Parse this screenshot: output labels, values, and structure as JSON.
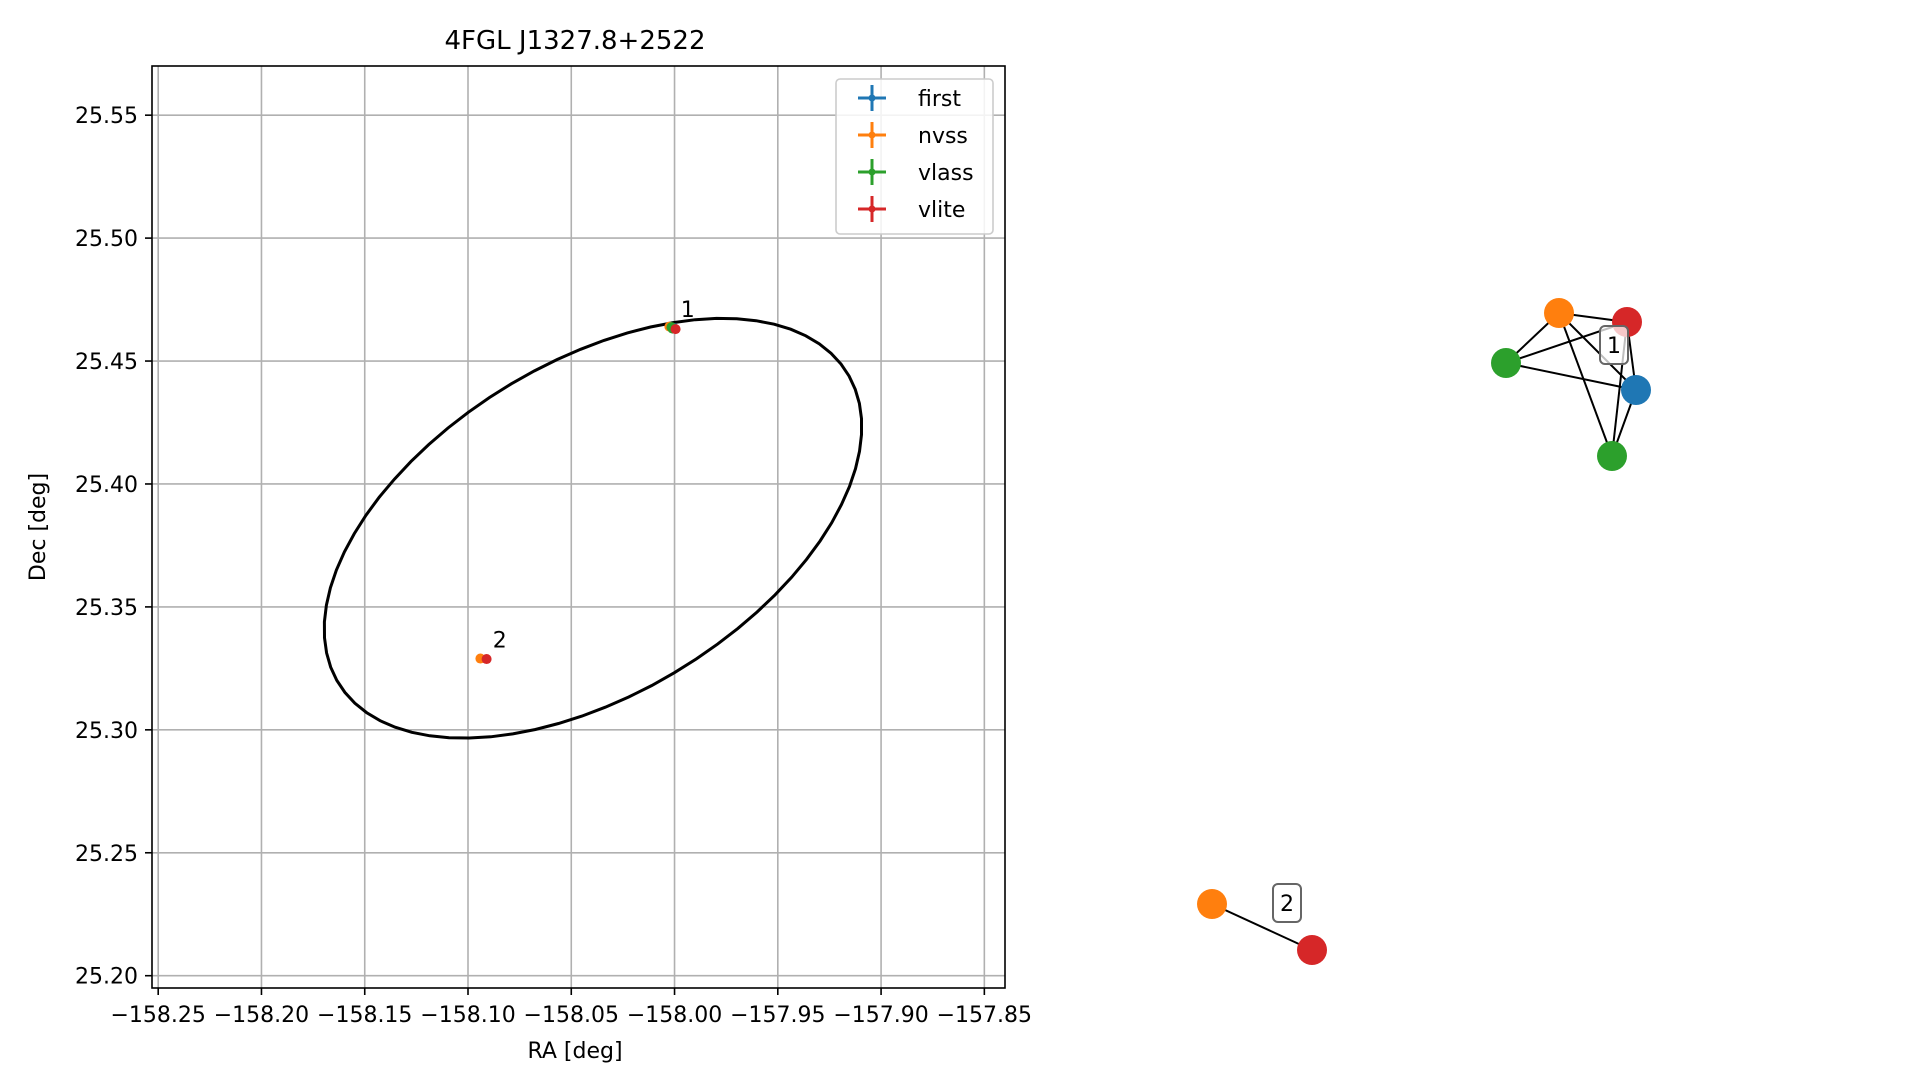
{
  "chart_data": [
    {
      "type": "scatter",
      "title": "4FGL J1327.8+2522",
      "xlabel": "RA [deg]",
      "ylabel": "Dec [deg]",
      "xlim": [
        -158.253,
        -157.84
      ],
      "ylim": [
        25.195,
        25.57
      ],
      "xticks": [
        -158.25,
        -158.2,
        -158.15,
        -158.1,
        -158.05,
        -158.0,
        -157.95,
        -157.9,
        -157.85
      ],
      "xtick_labels": [
        "−158.25",
        "−158.20",
        "−158.15",
        "−158.10",
        "−158.05",
        "−158.00",
        "−157.95",
        "−157.90",
        "−157.85"
      ],
      "yticks": [
        25.2,
        25.25,
        25.3,
        25.35,
        25.4,
        25.45,
        25.5,
        25.55
      ],
      "ytick_labels": [
        "25.20",
        "25.25",
        "25.30",
        "25.35",
        "25.40",
        "25.45",
        "25.50",
        "25.55"
      ],
      "grid": true,
      "legend_position": "top-right",
      "series": [
        {
          "name": "first",
          "color": "#1f77b4",
          "points": [
            {
              "x": -158.0005,
              "y": 25.4635
            }
          ]
        },
        {
          "name": "nvss",
          "color": "#ff7f0e",
          "points": [
            {
              "x": -158.0025,
              "y": 25.464
            },
            {
              "x": -158.094,
              "y": 25.329
            }
          ]
        },
        {
          "name": "vlass",
          "color": "#2ca02c",
          "points": [
            {
              "x": -158.0015,
              "y": 25.4638
            },
            {
              "x": -158.001,
              "y": 25.4632
            }
          ]
        },
        {
          "name": "vlite",
          "color": "#d62728",
          "points": [
            {
              "x": -157.9995,
              "y": 25.463
            },
            {
              "x": -158.091,
              "y": 25.3288
            }
          ]
        }
      ],
      "ellipse": {
        "center": [
          -158.0395,
          25.382
        ],
        "semi_axis_a": 0.139,
        "semi_axis_b": 0.07,
        "angle_deg": 24,
        "color": "#000000"
      },
      "annotations": [
        {
          "text": "1",
          "x": -157.997,
          "y": 25.468
        },
        {
          "text": "2",
          "x": -158.088,
          "y": 25.3335
        }
      ]
    },
    {
      "type": "network",
      "nodes": [
        {
          "id": "n-orange-1",
          "color": "#ff7f0e"
        },
        {
          "id": "n-red-1",
          "color": "#d62728"
        },
        {
          "id": "n-green-a",
          "color": "#2ca02c"
        },
        {
          "id": "n-blue-1",
          "color": "#1f77b4"
        },
        {
          "id": "n-green-b",
          "color": "#2ca02c"
        },
        {
          "id": "n-orange-2",
          "color": "#ff7f0e"
        },
        {
          "id": "n-red-2",
          "color": "#d62728"
        }
      ],
      "edges": [
        [
          "n-orange-1",
          "n-red-1"
        ],
        [
          "n-orange-1",
          "n-green-a"
        ],
        [
          "n-orange-1",
          "n-blue-1"
        ],
        [
          "n-orange-1",
          "n-green-b"
        ],
        [
          "n-red-1",
          "n-blue-1"
        ],
        [
          "n-red-1",
          "n-green-b"
        ],
        [
          "n-red-1",
          "n-green-a"
        ],
        [
          "n-green-a",
          "n-blue-1"
        ],
        [
          "n-blue-1",
          "n-green-b"
        ],
        [
          "n-orange-2",
          "n-red-2"
        ]
      ],
      "group_labels": [
        {
          "text": "1"
        },
        {
          "text": "2"
        }
      ]
    }
  ]
}
